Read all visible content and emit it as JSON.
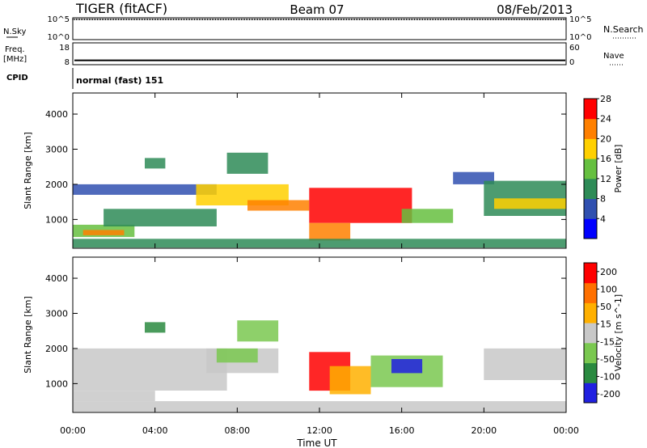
{
  "header": {
    "station": "TIGER (fitACF)",
    "beam": "Beam 07",
    "date": "08/Feb/2013"
  },
  "top_panels": {
    "nsky": {
      "label": "N.Sky",
      "ticks": [
        "10^5",
        "10^0"
      ]
    },
    "nsearch": {
      "label": "N.Search",
      "ticks": [
        "10^5",
        "10^0"
      ]
    },
    "freq": {
      "label_line1": "Freq.",
      "label_line2": "[MHz]",
      "ticks": [
        "18",
        "8"
      ],
      "value_mhz": 10
    },
    "nave": {
      "label": "Nave",
      "ticks": [
        "60",
        "0"
      ]
    },
    "cpid": {
      "label": "CPID",
      "text": "normal (fast) 151"
    }
  },
  "chart_data": [
    {
      "type": "heatmap",
      "title": "",
      "xlabel": "Time UT",
      "ylabel": "Slant Range [km]",
      "xlim": [
        "00:00",
        "24:00"
      ],
      "ylim": [
        180,
        4600
      ],
      "x_ticks": [
        "00:00",
        "04:00",
        "08:00",
        "12:00",
        "16:00",
        "20:00",
        "00:00"
      ],
      "y_ticks": [
        "1000",
        "2000",
        "3000",
        "4000"
      ],
      "colorbar": {
        "label": "Power [dB]",
        "ticks": [
          "4",
          "8",
          "12",
          "16",
          "20",
          "24",
          "28"
        ],
        "range": [
          0,
          30
        ],
        "colors": [
          "#0000ff",
          "#3050b0",
          "#2e8b57",
          "#66c040",
          "#ffd000",
          "#ff8000",
          "#ff0000"
        ]
      },
      "regions": [
        {
          "t0": 0.0,
          "t1": 7.0,
          "r_lo": 1700,
          "r_hi": 2000,
          "value": 8
        },
        {
          "t0": 0.0,
          "t1": 3.0,
          "r_lo": 500,
          "r_hi": 850,
          "value": 16
        },
        {
          "t0": 0.5,
          "t1": 2.5,
          "r_lo": 550,
          "r_hi": 700,
          "value": 24
        },
        {
          "t0": 1.5,
          "t1": 7.0,
          "r_lo": 800,
          "r_hi": 1300,
          "value": 10
        },
        {
          "t0": 3.5,
          "t1": 4.5,
          "r_lo": 2450,
          "r_hi": 2750,
          "value": 12
        },
        {
          "t0": 6.0,
          "t1": 10.5,
          "r_lo": 1400,
          "r_hi": 2000,
          "value": 20
        },
        {
          "t0": 7.5,
          "t1": 9.5,
          "r_lo": 2300,
          "r_hi": 2900,
          "value": 12
        },
        {
          "t0": 8.5,
          "t1": 11.5,
          "r_lo": 1250,
          "r_hi": 1550,
          "value": 24
        },
        {
          "t0": 11.5,
          "t1": 16.5,
          "r_lo": 900,
          "r_hi": 1900,
          "value": 28
        },
        {
          "t0": 11.5,
          "t1": 13.5,
          "r_lo": 400,
          "r_hi": 900,
          "value": 24
        },
        {
          "t0": 16.0,
          "t1": 18.5,
          "r_lo": 900,
          "r_hi": 1300,
          "value": 16
        },
        {
          "t0": 18.5,
          "t1": 20.5,
          "r_lo": 2000,
          "r_hi": 2350,
          "value": 6
        },
        {
          "t0": 20.0,
          "t1": 24.0,
          "r_lo": 1100,
          "r_hi": 2100,
          "value": 10
        },
        {
          "t0": 20.5,
          "t1": 24.0,
          "r_lo": 1300,
          "r_hi": 1600,
          "value": 18
        },
        {
          "t0": 0.0,
          "t1": 24.0,
          "r_lo": 200,
          "r_hi": 450,
          "value": 12
        }
      ]
    },
    {
      "type": "heatmap",
      "title": "",
      "xlabel": "Time UT",
      "ylabel": "Slant Range [km]",
      "xlim": [
        "00:00",
        "24:00"
      ],
      "ylim": [
        180,
        4600
      ],
      "x_ticks": [
        "00:00",
        "04:00",
        "08:00",
        "12:00",
        "16:00",
        "20:00",
        "00:00"
      ],
      "y_ticks": [
        "1000",
        "2000",
        "3000",
        "4000"
      ],
      "colorbar": {
        "label": "Velocity [m s^-1]",
        "ticks": [
          "200",
          "100",
          "50",
          "15",
          "-15",
          "-50",
          "-100",
          "-200"
        ],
        "range": [
          -250,
          250
        ],
        "colors": [
          "#2020e0",
          "#2a8a40",
          "#7ac850",
          "#c8c8c8",
          "#ffb000",
          "#ff7000",
          "#ff0000"
        ]
      },
      "regions": [
        {
          "t0": 0.0,
          "t1": 7.5,
          "r_lo": 800,
          "r_hi": 2000,
          "value": 0
        },
        {
          "t0": 0.0,
          "t1": 4.0,
          "r_lo": 500,
          "r_hi": 800,
          "value": 0
        },
        {
          "t0": 3.5,
          "t1": 4.5,
          "r_lo": 2450,
          "r_hi": 2750,
          "value": -120
        },
        {
          "t0": 6.5,
          "t1": 10.0,
          "r_lo": 1300,
          "r_hi": 2000,
          "value": 0
        },
        {
          "t0": 7.0,
          "t1": 9.0,
          "r_lo": 1600,
          "r_hi": 2000,
          "value": -50
        },
        {
          "t0": 8.0,
          "t1": 10.0,
          "r_lo": 2200,
          "r_hi": 2800,
          "value": -40
        },
        {
          "t0": 11.5,
          "t1": 13.5,
          "r_lo": 800,
          "r_hi": 1900,
          "value": 180
        },
        {
          "t0": 12.5,
          "t1": 14.5,
          "r_lo": 700,
          "r_hi": 1500,
          "value": 60
        },
        {
          "t0": 14.5,
          "t1": 18.0,
          "r_lo": 900,
          "r_hi": 1800,
          "value": -90
        },
        {
          "t0": 15.5,
          "t1": 17.0,
          "r_lo": 1300,
          "r_hi": 1700,
          "value": -180
        },
        {
          "t0": 20.0,
          "t1": 24.0,
          "r_lo": 1100,
          "r_hi": 2000,
          "value": 0
        },
        {
          "t0": 0.0,
          "t1": 24.0,
          "r_lo": 200,
          "r_hi": 500,
          "value": -30
        }
      ]
    }
  ]
}
